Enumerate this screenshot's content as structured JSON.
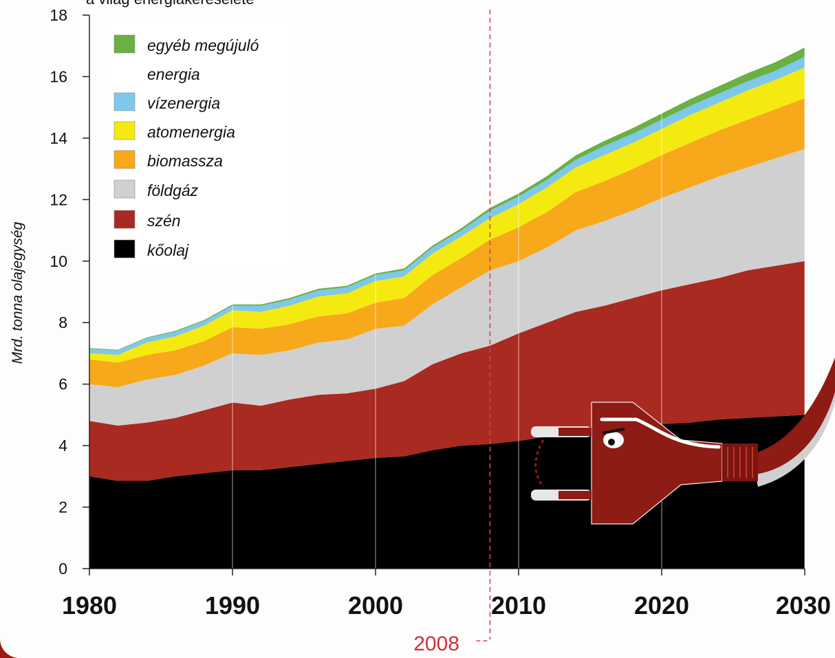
{
  "chart_data": {
    "type": "area",
    "title": "a világ energiakeresélete",
    "ylabel": "Mrd. tonna olajegység",
    "xlabel": "",
    "xlim": [
      1980,
      2030
    ],
    "ylim": [
      0,
      18
    ],
    "x_ticks": [
      "1980",
      "1990",
      "2000",
      "2010",
      "2020",
      "2030"
    ],
    "y_ticks": [
      "0",
      "2",
      "4",
      "6",
      "8",
      "10",
      "12",
      "14",
      "16",
      "18"
    ],
    "marker": {
      "x": 2008,
      "label": "2008"
    },
    "stacked": true,
    "x": [
      1980,
      1982,
      1984,
      1986,
      1988,
      1990,
      1992,
      1994,
      1996,
      1998,
      2000,
      2002,
      2004,
      2006,
      2008,
      2010,
      2012,
      2014,
      2016,
      2018,
      2020,
      2022,
      2024,
      2026,
      2028,
      2030
    ],
    "series": [
      {
        "name": "kőolaj",
        "color": "#000000",
        "values": [
          3.0,
          2.85,
          2.85,
          3.0,
          3.1,
          3.2,
          3.2,
          3.3,
          3.4,
          3.5,
          3.6,
          3.65,
          3.85,
          4.0,
          4.05,
          4.15,
          4.3,
          4.4,
          4.5,
          4.6,
          4.7,
          4.75,
          4.85,
          4.9,
          4.95,
          5.0
        ]
      },
      {
        "name": "szén",
        "color": "#a82a20",
        "values": [
          1.8,
          1.8,
          1.9,
          1.9,
          2.05,
          2.2,
          2.1,
          2.2,
          2.25,
          2.2,
          2.25,
          2.45,
          2.8,
          3.0,
          3.2,
          3.5,
          3.7,
          3.95,
          4.05,
          4.2,
          4.35,
          4.5,
          4.6,
          4.8,
          4.9,
          5.0
        ]
      },
      {
        "name": "földgáz",
        "color": "#d0d0d0",
        "values": [
          1.2,
          1.25,
          1.4,
          1.4,
          1.45,
          1.6,
          1.65,
          1.6,
          1.7,
          1.75,
          1.95,
          1.8,
          1.95,
          2.15,
          2.45,
          2.35,
          2.45,
          2.65,
          2.75,
          2.85,
          3.0,
          3.15,
          3.3,
          3.35,
          3.5,
          3.65
        ]
      },
      {
        "name": "biomassza",
        "color": "#f7a81b",
        "values": [
          0.8,
          0.8,
          0.8,
          0.8,
          0.8,
          0.85,
          0.85,
          0.85,
          0.85,
          0.85,
          0.85,
          0.9,
          0.95,
          0.95,
          1.0,
          1.1,
          1.15,
          1.25,
          1.3,
          1.35,
          1.4,
          1.45,
          1.5,
          1.55,
          1.6,
          1.65
        ]
      },
      {
        "name": "atomenergia",
        "color": "#f5ea10",
        "values": [
          0.2,
          0.25,
          0.4,
          0.45,
          0.5,
          0.55,
          0.55,
          0.6,
          0.65,
          0.65,
          0.7,
          0.7,
          0.7,
          0.7,
          0.7,
          0.75,
          0.8,
          0.8,
          0.85,
          0.85,
          0.85,
          0.9,
          0.9,
          0.95,
          0.95,
          1.0
        ]
      },
      {
        "name": "vízenergia",
        "color": "#7ec8ea",
        "values": [
          0.15,
          0.15,
          0.15,
          0.15,
          0.15,
          0.15,
          0.2,
          0.2,
          0.2,
          0.2,
          0.2,
          0.2,
          0.2,
          0.2,
          0.25,
          0.25,
          0.25,
          0.25,
          0.3,
          0.3,
          0.3,
          0.3,
          0.3,
          0.3,
          0.3,
          0.35
        ]
      },
      {
        "name": "egyéb megújuló energia",
        "color": "#6ab043",
        "values": [
          0.02,
          0.02,
          0.02,
          0.03,
          0.03,
          0.04,
          0.04,
          0.05,
          0.05,
          0.05,
          0.05,
          0.06,
          0.06,
          0.07,
          0.08,
          0.1,
          0.12,
          0.14,
          0.16,
          0.18,
          0.2,
          0.22,
          0.24,
          0.26,
          0.28,
          0.3
        ]
      }
    ],
    "legend": {
      "position": "top-left",
      "items": [
        "egyéb megújuló",
        "energia",
        "vízenergia",
        "atomenergia",
        "biomassza",
        "földgáz",
        "szén",
        "kőolaj"
      ]
    },
    "grid": {
      "vertical": true,
      "horizontal": false
    }
  }
}
